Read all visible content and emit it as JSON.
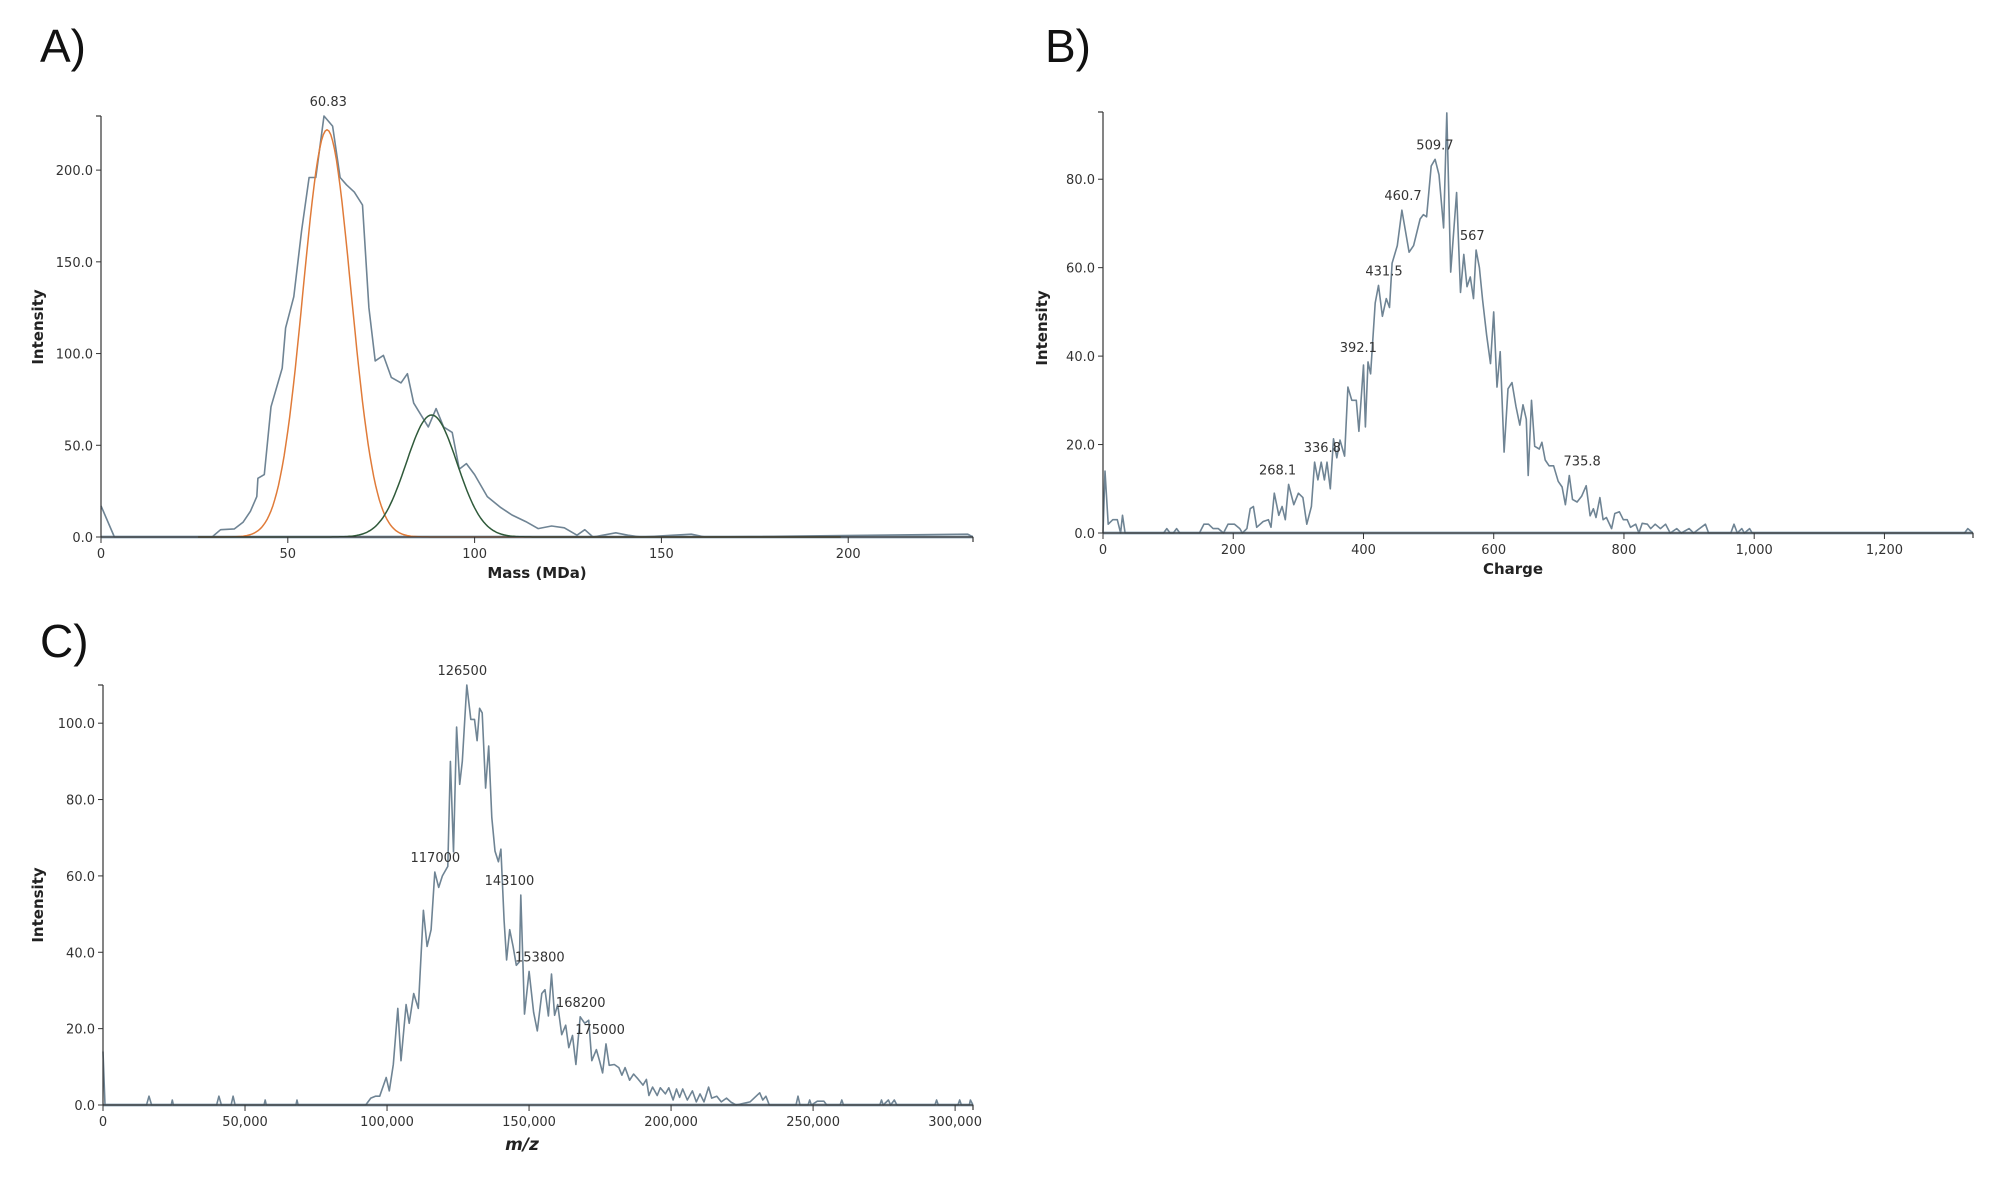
{
  "colors": {
    "spectrum": "#6f8494",
    "fit_1": "#e07b39",
    "fit_2": "#2f5a3a",
    "axis": "#333333",
    "baseline": "#9fb3c2"
  },
  "chart_data": [
    {
      "panel": "A)",
      "type": "line",
      "xlabel": "Mass (MDa)",
      "ylabel": "Intensity",
      "xlim": [
        0,
        233.4
      ],
      "ylim": [
        0,
        229.5
      ],
      "grid": false,
      "x_ticks": [
        0,
        50,
        100,
        150,
        200
      ],
      "x_tick_labels": [
        "0",
        "50",
        "100",
        "150",
        "200"
      ],
      "y_ticks": [
        0,
        50,
        100,
        150,
        200
      ],
      "y_tick_labels": [
        "0.0",
        "50.0",
        "100.0",
        "150.0",
        "200.0"
      ],
      "series": [
        {
          "kind": "spectrum",
          "x": [
            0,
            3.6,
            29.7,
            32,
            35.7,
            38,
            40,
            41.7,
            42,
            43.7,
            45.5,
            48.5,
            49.4,
            51.6,
            53.7,
            55.7,
            57.5,
            59.7,
            62,
            64,
            65.7,
            67.8,
            70,
            71.7,
            73.4,
            75.6,
            77.7,
            80.3,
            82,
            83.7,
            87.6,
            89.7,
            91.7,
            94,
            95.9,
            97.8,
            100,
            103.4,
            107,
            110,
            113.7,
            117,
            120.6,
            124,
            127.4,
            129.5,
            131.7,
            137.8,
            141,
            144.6,
            158,
            161.7,
            232,
            233.4
          ],
          "y": [
            17,
            0,
            0,
            4,
            4.4,
            8,
            14,
            22,
            32,
            34,
            71,
            92,
            114,
            131,
            167,
            196,
            196,
            229.5,
            224,
            196,
            192,
            188,
            181,
            125,
            96,
            99,
            87,
            84,
            89,
            73,
            60,
            70,
            60,
            57,
            37,
            40,
            34,
            22,
            16,
            12,
            8.4,
            4.6,
            6,
            5,
            1,
            4,
            0,
            2.3,
            1,
            0,
            1.5,
            0,
            1.5,
            0
          ]
        },
        {
          "kind": "fit_1",
          "model": "gaussian",
          "center": 60.5,
          "amplitude": 222,
          "sigma": 6.4,
          "x_range": [
            26,
            198
          ]
        },
        {
          "kind": "fit_2",
          "model": "gaussian",
          "center": 88.5,
          "amplitude": 66.5,
          "sigma": 6.8,
          "x_range": [
            26,
            198
          ]
        }
      ],
      "annotations": [
        {
          "text": "60.83",
          "x": 60.83,
          "y": 229.5
        }
      ]
    },
    {
      "panel": "B)",
      "type": "line",
      "xlabel": "Charge",
      "ylabel": "Intensity",
      "xlim": [
        0,
        1336
      ],
      "ylim": [
        0,
        95.2
      ],
      "grid": false,
      "x_ticks": [
        0,
        200,
        400,
        600,
        800,
        1000,
        1200
      ],
      "x_tick_labels": [
        "0",
        "200",
        "400",
        "600",
        "800",
        "1,000",
        "1,200"
      ],
      "y_ticks": [
        0,
        20,
        40,
        60,
        80
      ],
      "y_tick_labels": [
        "0.0",
        "20.0",
        "40.0",
        "60.0",
        "80.0"
      ],
      "series": [
        {
          "kind": "spectrum",
          "x": [
            0,
            3,
            8,
            15,
            22,
            27,
            30,
            34,
            93,
            98,
            103,
            108,
            113,
            118,
            148,
            155,
            162,
            169,
            177,
            185,
            192,
            202,
            210,
            214,
            221,
            226,
            231,
            236,
            246,
            254,
            258,
            263,
            270,
            275,
            280,
            285,
            293,
            300,
            307,
            313,
            320,
            325,
            330,
            335,
            340,
            344,
            349,
            354,
            359,
            364,
            371,
            376,
            382,
            389,
            393,
            400,
            403,
            407,
            411,
            418,
            423,
            429,
            435,
            440,
            444,
            452,
            459,
            470,
            477,
            487,
            492,
            497,
            504,
            510,
            516,
            523,
            528,
            534,
            543,
            549,
            554,
            559,
            564,
            569,
            573,
            578,
            583,
            589,
            595,
            600,
            605,
            610,
            616,
            622,
            628,
            634,
            640,
            645,
            650,
            653,
            658,
            663,
            670,
            674,
            679,
            685,
            692,
            699,
            705,
            710,
            716,
            721,
            728,
            735,
            742,
            748,
            753,
            757,
            763,
            768,
            773,
            781,
            786,
            793,
            799,
            805,
            810,
            818,
            823,
            828,
            836,
            841,
            848,
            856,
            864,
            871,
            881,
            888,
            900,
            907,
            925,
            930,
            964,
            969,
            974,
            981,
            985,
            993,
            997,
            1323,
            1328,
            1336
          ],
          "y": [
            0,
            14,
            2,
            3,
            3,
            0,
            4,
            0,
            0,
            1,
            0,
            0,
            1,
            0,
            0,
            2,
            2,
            1,
            1,
            0,
            2,
            2,
            1,
            0,
            1,
            5.5,
            6,
            1.3,
            2.6,
            3,
            1.3,
            9,
            4,
            6,
            3,
            11,
            6.4,
            9,
            8,
            2,
            6,
            16,
            12,
            16,
            12,
            16,
            10,
            21.3,
            17,
            21,
            17.4,
            33,
            30,
            30,
            23,
            38,
            24,
            38.7,
            36,
            52,
            56,
            49,
            53,
            51,
            61,
            65,
            73,
            63.5,
            65,
            71,
            72,
            71.5,
            83,
            84.5,
            81,
            69,
            95,
            59,
            77,
            54.4,
            63,
            55.7,
            57.9,
            53,
            64,
            60,
            52.7,
            44.8,
            38.3,
            50,
            33,
            41,
            18.3,
            32.6,
            34,
            28.7,
            24.4,
            29,
            25.7,
            13,
            30,
            19.6,
            19,
            20.5,
            16.5,
            15.2,
            15.2,
            11.7,
            10.4,
            6.4,
            13,
            7.6,
            7,
            8.3,
            10.7,
            3.9,
            5.5,
            3.5,
            8,
            3,
            3.5,
            1,
            4.4,
            4.8,
            3,
            3,
            1.3,
            2,
            0,
            2.2,
            2,
            1,
            2,
            1,
            2,
            0,
            1,
            0,
            1,
            0,
            2,
            0,
            0,
            2,
            0,
            1,
            0,
            1,
            0,
            0,
            1,
            0
          ]
        }
      ],
      "annotations": [
        {
          "text": "268.1",
          "x": 268.1,
          "y": 11
        },
        {
          "text": "336.8",
          "x": 336.8,
          "y": 16
        },
        {
          "text": "392.1",
          "x": 392.1,
          "y": 38.7
        },
        {
          "text": "431.5",
          "x": 431.5,
          "y": 56
        },
        {
          "text": "460.7",
          "x": 460.7,
          "y": 73
        },
        {
          "text": "509.7",
          "x": 509.7,
          "y": 84.5
        },
        {
          "text": "567",
          "x": 567,
          "y": 64
        },
        {
          "text": "735.8",
          "x": 735.8,
          "y": 13
        }
      ]
    },
    {
      "panel": "C)",
      "type": "line",
      "xlabel": "m/z",
      "ylabel": "Intensity",
      "xlim": [
        0,
        306300
      ],
      "ylim": [
        0,
        110
      ],
      "grid": false,
      "x_ticks": [
        0,
        50000,
        100000,
        150000,
        200000,
        250000,
        300000
      ],
      "x_tick_labels": [
        "0",
        "50,000",
        "100,000",
        "150,000",
        "200,000",
        "250,000",
        "300,000"
      ],
      "y_ticks": [
        0,
        20,
        40,
        60,
        80,
        100
      ],
      "y_tick_labels": [
        "0.0",
        "20.0",
        "40.0",
        "60.0",
        "80.0",
        "100.0"
      ],
      "series": [
        {
          "kind": "spectrum",
          "x": [
            0,
            700,
            15300,
            16200,
            17100,
            24000,
            24400,
            24800,
            40000,
            40800,
            41700,
            45100,
            45800,
            46500,
            56700,
            57100,
            57500,
            67900,
            68300,
            68700,
            92500,
            94300,
            95900,
            97400,
            99700,
            100800,
            102200,
            103800,
            104900,
            106700,
            107800,
            109400,
            111000,
            112800,
            114100,
            115500,
            116800,
            118200,
            119500,
            121400,
            122300,
            123400,
            124500,
            125600,
            126500,
            128100,
            129500,
            130800,
            131700,
            132600,
            133500,
            134700,
            135800,
            136900,
            138000,
            139200,
            140100,
            141200,
            142100,
            143200,
            144400,
            145500,
            146600,
            147100,
            148400,
            150000,
            151600,
            152900,
            154500,
            155600,
            156800,
            157900,
            159000,
            160100,
            161500,
            162900,
            164000,
            165300,
            166500,
            168000,
            169600,
            171000,
            172100,
            173700,
            174800,
            175900,
            177100,
            178200,
            180000,
            181600,
            182700,
            183800,
            185400,
            186800,
            188300,
            190100,
            191300,
            192200,
            193500,
            195100,
            196200,
            198000,
            199200,
            200700,
            201900,
            203000,
            204100,
            205700,
            207500,
            208900,
            210200,
            211600,
            213200,
            214300,
            216100,
            217700,
            219500,
            221000,
            222900,
            227800,
            231200,
            232300,
            233400,
            234600,
            244000,
            244700,
            245400,
            248200,
            248800,
            249400,
            251500,
            253800,
            254800,
            259500,
            260100,
            260700,
            273500,
            274100,
            274700,
            276500,
            277300,
            278600,
            279500,
            292900,
            293500,
            294100,
            301000,
            301600,
            302200,
            305000,
            305400,
            306300
          ],
          "y": [
            14,
            0,
            0,
            2.3,
            0,
            0,
            1.3,
            0,
            0,
            2.3,
            0,
            0,
            2.3,
            0,
            0,
            1.3,
            0,
            0,
            1.3,
            0,
            0,
            1.8,
            2.3,
            2.3,
            7.2,
            3.7,
            10.6,
            25.3,
            11.6,
            26.3,
            21.4,
            29.2,
            25.3,
            51,
            41.5,
            45.9,
            61,
            57,
            60,
            62.5,
            90,
            66.3,
            99,
            84,
            90,
            110,
            101,
            101,
            95.4,
            103.9,
            102.7,
            83,
            94,
            75.3,
            66.5,
            63.7,
            67,
            48.3,
            38,
            45.9,
            41.5,
            36.6,
            37.5,
            55,
            23.8,
            35,
            24.3,
            19.4,
            29.2,
            30.2,
            23.3,
            34.3,
            23.5,
            26.3,
            18.4,
            20.9,
            15,
            18.2,
            10.6,
            23.1,
            21.4,
            22.2,
            11.6,
            14.5,
            11.6,
            8.4,
            16,
            10.4,
            10.6,
            9.8,
            7.8,
            9.8,
            6.5,
            8.1,
            6.9,
            5.2,
            6.7,
            2.5,
            4.7,
            2.5,
            4.5,
            2.9,
            4.5,
            1.3,
            4.2,
            2,
            4.2,
            1.3,
            3.7,
            0.8,
            2.9,
            0.8,
            4.7,
            1.8,
            2.3,
            0.8,
            1.8,
            0.8,
            0,
            0.8,
            3.2,
            1.3,
            2.3,
            0,
            0,
            2.3,
            0,
            0,
            1.3,
            0,
            1,
            1,
            0,
            0,
            1.3,
            0,
            0,
            1.3,
            0,
            1.3,
            0,
            1.3,
            0,
            0,
            1.3,
            0,
            0,
            1.3,
            0,
            0,
            1.3,
            0
          ]
        }
      ],
      "annotations": [
        {
          "text": "126500",
          "x": 126500,
          "y": 110
        },
        {
          "text": "117000",
          "x": 117000,
          "y": 61
        },
        {
          "text": "143100",
          "x": 143100,
          "y": 55
        },
        {
          "text": "153800",
          "x": 153800,
          "y": 35
        },
        {
          "text": "168200",
          "x": 168200,
          "y": 23
        },
        {
          "text": "175000",
          "x": 175000,
          "y": 16
        }
      ]
    }
  ]
}
